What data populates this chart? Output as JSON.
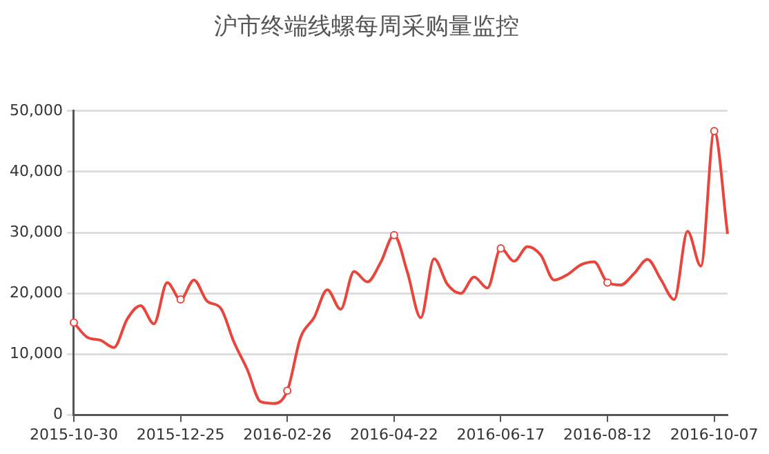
{
  "chart_data": {
    "type": "line",
    "title": "沪市终端线螺每周采购量监控",
    "categories": [
      "2015-10-30",
      null,
      null,
      null,
      null,
      null,
      null,
      null,
      "2015-12-25",
      null,
      null,
      null,
      null,
      null,
      null,
      null,
      "2016-02-26",
      null,
      null,
      null,
      null,
      null,
      null,
      null,
      "2016-04-22",
      null,
      null,
      null,
      null,
      null,
      null,
      null,
      "2016-06-17",
      null,
      null,
      null,
      null,
      null,
      null,
      null,
      "2016-08-12",
      null,
      null,
      null,
      null,
      null,
      null,
      null,
      "2016-10-07",
      null
    ],
    "series": [
      {
        "color": "#e8453c",
        "values": [
          15200,
          12800,
          12300,
          11100,
          15800,
          18000,
          15000,
          21800,
          19000,
          22200,
          18700,
          17600,
          12000,
          7500,
          2200,
          1900,
          4000,
          12800,
          16000,
          20600,
          17400,
          23600,
          21900,
          25100,
          29600,
          23500,
          16000,
          25700,
          21500,
          20000,
          22700,
          20900,
          27400,
          25300,
          27700,
          26300,
          22200,
          23100,
          24700,
          25200,
          21800,
          21400,
          23300,
          25600,
          22300,
          19000,
          30200,
          24500,
          46700,
          29800
        ]
      }
    ],
    "ylim": [
      0,
      50000
    ],
    "yticks": [
      {
        "value": 0,
        "label": "0"
      },
      {
        "value": 10000,
        "label": "10,000"
      },
      {
        "value": 20000,
        "label": "20,000"
      },
      {
        "value": 30000,
        "label": "30,000"
      },
      {
        "value": 40000,
        "label": "40,000"
      },
      {
        "value": 50000,
        "label": "50,000"
      }
    ],
    "grid": "y",
    "legend": false,
    "line_style": "solid"
  }
}
